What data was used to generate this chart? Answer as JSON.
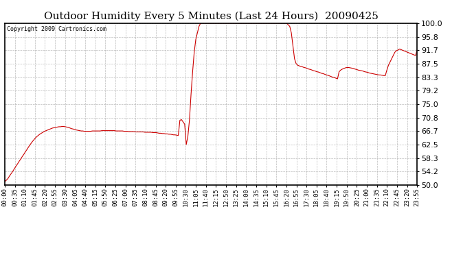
{
  "title": "Outdoor Humidity Every 5 Minutes (Last 24 Hours)  20090425",
  "copyright": "Copyright 2009 Cartronics.com",
  "line_color": "#cc0000",
  "bg_color": "#ffffff",
  "plot_bg_color": "#ffffff",
  "grid_color": "#aaaaaa",
  "ylim": [
    50.0,
    100.0
  ],
  "yticks": [
    50.0,
    54.2,
    58.3,
    62.5,
    66.7,
    70.8,
    75.0,
    79.2,
    83.3,
    87.5,
    91.7,
    95.8,
    100.0
  ],
  "ylabel_fontsize": 8,
  "xlabel_fontsize": 6.5,
  "title_fontsize": 11,
  "data_points": [
    51.0,
    51.5,
    52.0,
    52.8,
    53.5,
    54.2,
    55.0,
    55.8,
    56.5,
    57.3,
    58.0,
    58.8,
    59.5,
    60.3,
    61.0,
    61.8,
    62.5,
    63.2,
    63.8,
    64.4,
    64.9,
    65.3,
    65.7,
    66.0,
    66.3,
    66.6,
    66.8,
    67.0,
    67.2,
    67.4,
    67.6,
    67.7,
    67.8,
    67.9,
    68.0,
    68.0,
    68.1,
    68.1,
    68.0,
    67.9,
    67.8,
    67.6,
    67.4,
    67.3,
    67.1,
    67.0,
    66.9,
    66.8,
    66.7,
    66.7,
    66.6,
    66.6,
    66.6,
    66.6,
    66.6,
    66.7,
    66.7,
    66.7,
    66.7,
    66.7,
    66.7,
    66.8,
    66.8,
    66.8,
    66.8,
    66.8,
    66.8,
    66.8,
    66.8,
    66.8,
    66.7,
    66.7,
    66.7,
    66.7,
    66.7,
    66.6,
    66.6,
    66.6,
    66.5,
    66.5,
    66.5,
    66.5,
    66.4,
    66.4,
    66.4,
    66.4,
    66.4,
    66.4,
    66.3,
    66.3,
    66.3,
    66.3,
    66.3,
    66.2,
    66.2,
    66.2,
    66.1,
    66.0,
    66.0,
    65.9,
    65.9,
    65.8,
    65.8,
    65.7,
    65.7,
    65.6,
    65.5,
    65.5,
    65.4,
    65.3,
    70.0,
    70.2,
    69.5,
    68.8,
    62.5,
    65.0,
    70.0,
    78.0,
    85.0,
    91.0,
    95.0,
    97.0,
    99.0,
    100.0,
    100.0,
    100.0,
    100.0,
    100.0,
    100.0,
    100.0,
    100.0,
    100.0,
    100.0,
    100.0,
    100.0,
    100.0,
    100.0,
    100.0,
    100.0,
    100.0,
    100.0,
    100.0,
    100.0,
    100.0,
    100.0,
    100.0,
    100.0,
    100.0,
    100.0,
    100.0,
    100.0,
    100.0,
    100.0,
    100.0,
    100.0,
    100.0,
    100.0,
    100.0,
    100.0,
    100.0,
    100.0,
    100.0,
    100.0,
    100.0,
    100.0,
    100.0,
    100.0,
    100.0,
    100.0,
    100.0,
    100.0,
    100.0,
    100.0,
    100.0,
    100.0,
    100.0,
    100.0,
    100.0,
    99.5,
    99.0,
    97.0,
    93.0,
    89.0,
    87.5,
    87.0,
    86.8,
    86.6,
    86.5,
    86.3,
    86.2,
    86.0,
    85.8,
    85.7,
    85.5,
    85.3,
    85.2,
    85.0,
    84.9,
    84.7,
    84.5,
    84.4,
    84.2,
    84.0,
    83.9,
    83.7,
    83.5,
    83.3,
    83.2,
    83.0,
    82.8,
    85.0,
    85.5,
    85.8,
    86.0,
    86.2,
    86.3,
    86.3,
    86.2,
    86.1,
    86.0,
    85.8,
    85.7,
    85.5,
    85.4,
    85.3,
    85.2,
    85.0,
    84.9,
    84.8,
    84.6,
    84.5,
    84.4,
    84.3,
    84.2,
    84.1,
    84.0,
    84.0,
    83.9,
    83.8,
    83.8,
    85.5,
    87.0,
    88.0,
    89.0,
    90.0,
    91.0,
    91.5,
    91.7,
    92.0,
    91.8,
    91.6,
    91.4,
    91.2,
    91.0,
    90.8,
    90.6,
    90.4,
    90.2,
    90.0,
    91.7
  ],
  "xtick_labels": [
    "00:00",
    "00:35",
    "01:10",
    "01:45",
    "02:20",
    "02:55",
    "03:30",
    "04:05",
    "04:40",
    "05:15",
    "05:50",
    "06:25",
    "07:00",
    "07:35",
    "08:10",
    "08:45",
    "09:20",
    "09:55",
    "10:30",
    "11:05",
    "11:40",
    "12:15",
    "12:50",
    "13:25",
    "14:00",
    "14:35",
    "15:10",
    "15:45",
    "16:20",
    "16:55",
    "17:30",
    "18:05",
    "18:40",
    "19:15",
    "19:50",
    "20:25",
    "21:00",
    "21:35",
    "22:10",
    "22:45",
    "23:20",
    "23:55"
  ]
}
